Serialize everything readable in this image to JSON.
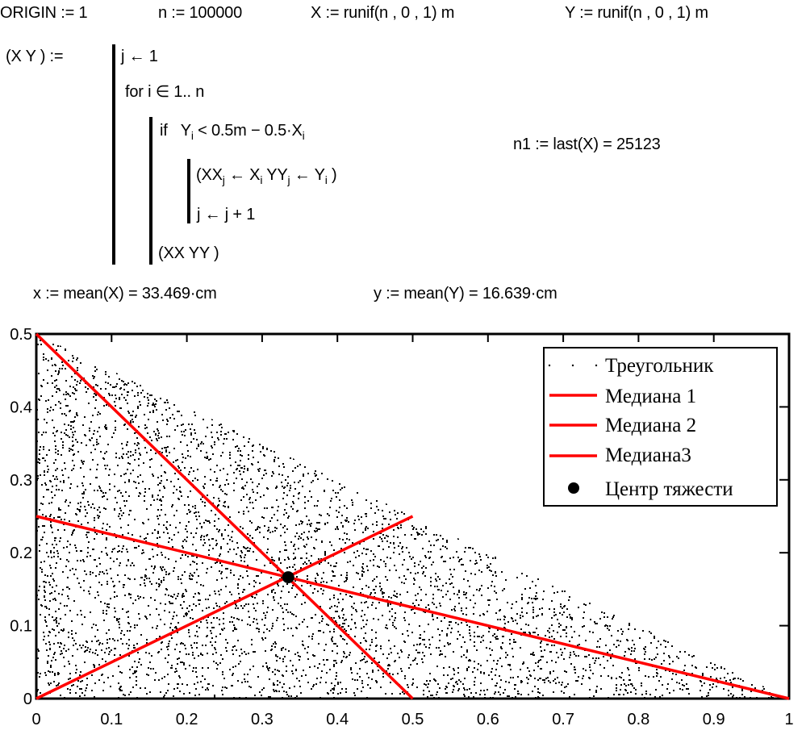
{
  "worksheet": {
    "line1": {
      "origin": "ORIGIN := 1",
      "n_def": "n := 100000",
      "x_def": "X := runif(n , 0 , 1) m",
      "y_def": "Y := runif(n , 0 , 1) m"
    },
    "program": {
      "lhs": "(X   Y ) :=",
      "line_init": "j ← 1",
      "line_for": "for   i ∈ 1.. n",
      "line_if_kw": "if",
      "line_if_cond_a": "Y",
      "line_if_cond_sub_a": "i",
      "line_if_cond_b": " < 0.5m − 0.5·X",
      "line_if_cond_sub_b": "i",
      "assign_a": "(XX",
      "assign_sub_j1": "j",
      "assign_b": " ← X",
      "assign_sub_i1": "i",
      "assign_c": "   YY",
      "assign_sub_j2": "j",
      "assign_d": " ← Y",
      "assign_sub_i2": "i",
      "assign_e": " )",
      "line_incr": "j ← j + 1",
      "line_return": "(XX   YY )"
    },
    "n1_result": "n1 := last(X) = 25123",
    "mean_x": "x := mean(X) = 33.469·cm",
    "mean_y": "y := mean(Y) = 16.639·cm"
  },
  "colors": {
    "median_line": "#ff0000",
    "points": "#000000",
    "frame": "#000000",
    "background": "#ffffff"
  },
  "chart_data": {
    "type": "scatter",
    "title": "",
    "xlabel": "",
    "ylabel": "",
    "xlim": [
      0,
      1
    ],
    "ylim": [
      0,
      0.5
    ],
    "grid": false,
    "x_ticks": [
      "0",
      "0.1",
      "0.2",
      "0.3",
      "0.4",
      "0.5",
      "0.6",
      "0.7",
      "0.8",
      "0.9",
      "1"
    ],
    "y_ticks": [
      "0",
      "0.1",
      "0.2",
      "0.3",
      "0.4",
      "0.5"
    ],
    "legend_position": "top-right",
    "series": [
      {
        "name": "Треугольник",
        "kind": "points",
        "description": "random points under y = 0.5 − 0.5x, n1 = 25123",
        "count": 25123
      },
      {
        "name": "Медиана 1",
        "kind": "line",
        "x": [
          0,
          0.5
        ],
        "y": [
          0.5,
          0
        ]
      },
      {
        "name": "Медиана 2",
        "kind": "line",
        "x": [
          0,
          1
        ],
        "y": [
          0.25,
          0
        ]
      },
      {
        "name": "Медиана3",
        "kind": "line",
        "x": [
          0,
          0.5
        ],
        "y": [
          0,
          0.25
        ]
      },
      {
        "name": "Центр тяжести",
        "kind": "marker",
        "x": [
          0.33469
        ],
        "y": [
          0.16639
        ]
      }
    ]
  }
}
